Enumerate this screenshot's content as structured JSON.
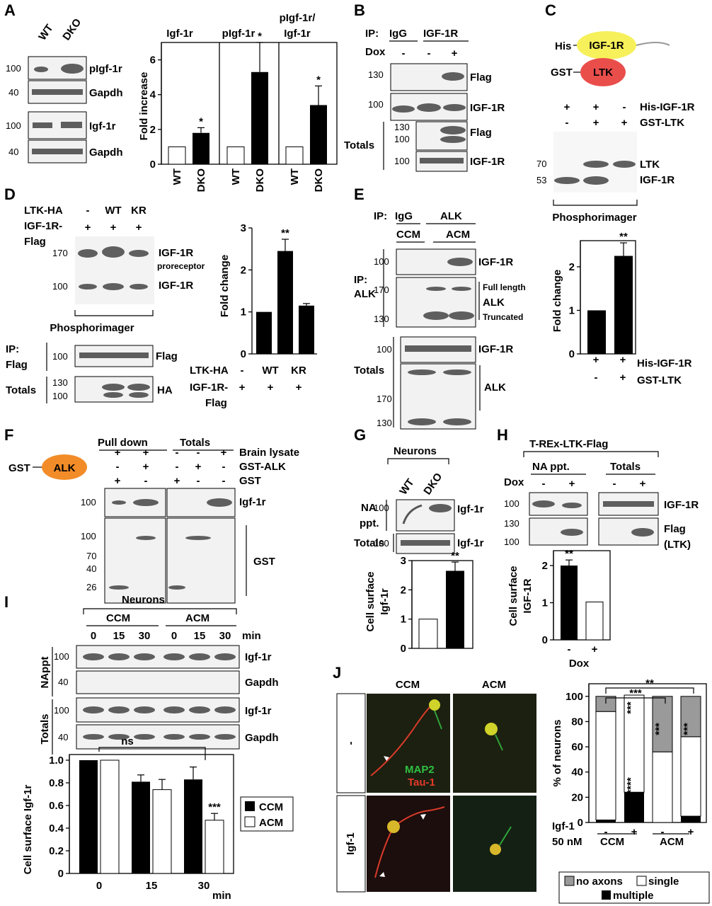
{
  "panels": {
    "A": {
      "letter": "A",
      "lanes": [
        "WT",
        "DKO"
      ],
      "blots": [
        {
          "mw": "100",
          "label": "pIgf-1r"
        },
        {
          "mw": "40",
          "label": "Gapdh"
        },
        {
          "mw": "100",
          "label": "Igf-1r"
        },
        {
          "mw": "40",
          "label": "Gapdh"
        }
      ],
      "chart_titles": [
        "Igf-1r",
        "pIgf-1r",
        "pIgf-1r/",
        "Igf-1r"
      ],
      "ylabel": "Fold increase",
      "yticks": [
        "0",
        "2",
        "4",
        "6"
      ],
      "xticks": [
        "WT",
        "DKO"
      ],
      "sig": "*"
    },
    "B": {
      "letter": "B",
      "ip_label": "IP:",
      "ip_groups": [
        "IgG",
        "IGF-1R"
      ],
      "dox_label": "Dox",
      "dox_signs": [
        "-",
        "-",
        "+"
      ],
      "blots": [
        {
          "mw": "130",
          "label": "Flag"
        },
        {
          "mw": "100",
          "label": "IGF-1R"
        },
        {
          "mw": "130",
          "mw2": "100",
          "label": "Flag"
        },
        {
          "mw": "100",
          "label": "IGF-1R"
        }
      ],
      "totals": "Totals"
    },
    "C": {
      "letter": "C",
      "his": "His",
      "igf": "IGF-1R",
      "gst": "GST",
      "ltk": "LTK",
      "rows": [
        {
          "signs": [
            "+",
            "+",
            "-"
          ],
          "label": "His-IGF-1R"
        },
        {
          "signs": [
            "-",
            "+",
            "+"
          ],
          "label": "GST-LTK"
        }
      ],
      "mw": [
        "70",
        "53"
      ],
      "band_labels": [
        "LTK",
        "IGF-1R"
      ],
      "phos": "Phosphorimager",
      "ylabel": "Fold change",
      "yticks": [
        "0",
        "1",
        "2"
      ],
      "sig": "**"
    },
    "D": {
      "letter": "D",
      "ltk": "LTK-HA",
      "lane_hdr": [
        "-",
        "WT",
        "KR"
      ],
      "igf": "IGF-1R-",
      "flag": "Flag",
      "signs": [
        "+",
        "+",
        "+"
      ],
      "mw": [
        "170",
        "100"
      ],
      "band_labels": [
        "IGF-1R",
        "proreceptor",
        "IGF-1R"
      ],
      "phos": "Phosphorimager",
      "ip": "IP:",
      "ip2": "Flag",
      "ip_mw": "100",
      "ip_label": "Flag",
      "totals": "Totals",
      "tot_mw": [
        "130",
        "100"
      ],
      "tot_label": "HA",
      "ylabel": "Fold change",
      "yticks": [
        "0",
        "1",
        "2",
        "3"
      ],
      "sig": "**"
    },
    "E": {
      "letter": "E",
      "ip": "IP:",
      "groups": [
        "IgG",
        "ALK",
        "CCM",
        "ACM"
      ],
      "ip_alk": [
        "IP:",
        "ALK"
      ],
      "mw": [
        "100",
        "170",
        "130",
        "100",
        "170",
        "130"
      ],
      "labels": [
        "IGF-1R",
        "Full length",
        "ALK",
        "Truncated",
        "IGF-1R",
        "ALK"
      ],
      "totals": "Totals"
    },
    "F": {
      "letter": "F",
      "gst": "GST",
      "alk": "ALK",
      "headers": [
        "Pull down",
        "Totals"
      ],
      "rows": [
        {
          "signs": [
            "+",
            "+",
            "-",
            "-",
            "+"
          ],
          "label": "Brain lysate"
        },
        {
          "signs": [
            "-",
            "+",
            "-",
            "+",
            "-"
          ],
          "label": "GST-ALK"
        },
        {
          "signs": [
            "+",
            "-",
            "+",
            "-",
            "-"
          ],
          "label": "GST"
        }
      ],
      "mw": [
        "100",
        "100",
        "70",
        "40",
        "26"
      ],
      "labels": [
        "Igf-1r",
        "GST"
      ]
    },
    "G": {
      "letter": "G",
      "header": "Neurons",
      "lanes": [
        "WT",
        "DKO"
      ],
      "na": [
        "NA",
        "ppt."
      ],
      "totals": "Totals",
      "mw": [
        "100",
        "100"
      ],
      "labels": [
        "Igf-1r",
        "Igf-1r"
      ],
      "ylabel": [
        "Cell surface",
        "Igf-1r"
      ],
      "yticks": [
        "0",
        "1",
        "2",
        "3"
      ],
      "sig": "**"
    },
    "H": {
      "letter": "H",
      "header": "T-REx-LTK-Flag",
      "groups": [
        "NA ppt.",
        "Totals"
      ],
      "dox": "Dox",
      "signs": [
        "-",
        "+",
        "-",
        "+"
      ],
      "mw": [
        "100",
        "130",
        "100"
      ],
      "labels": [
        "IGF-1R",
        "Flag",
        "(LTK)"
      ],
      "ylabel": [
        "Cell surface",
        "IGF-1R"
      ],
      "yticks": [
        "0",
        "1",
        "2"
      ],
      "xsigns": [
        "-",
        "+"
      ],
      "xlabel": "Dox",
      "sig": "**"
    },
    "I": {
      "letter": "I",
      "header": "Neurons",
      "groups": [
        "CCM",
        "ACM"
      ],
      "times": [
        "0",
        "15",
        "30",
        "0",
        "15",
        "30"
      ],
      "min": "min",
      "side": [
        "NAppt",
        "Totals"
      ],
      "mw": [
        "100",
        "40",
        "100",
        "40"
      ],
      "labels": [
        "Igf-1r",
        "Gapdh",
        "Igf-1r",
        "Gapdh"
      ],
      "ylabel": "Cell surface Igf-1r",
      "yticks": [
        "0",
        "0.2",
        "0.4",
        "0.6",
        "0.8",
        "1.0"
      ],
      "xticks": [
        "0",
        "15",
        "30"
      ],
      "xunit": "min",
      "ns": "ns",
      "sig": "***",
      "legend": [
        "CCM",
        "ACM"
      ]
    },
    "J": {
      "letter": "J",
      "cols": [
        "CCM",
        "ACM"
      ],
      "rows": [
        "-",
        "Igf-1"
      ],
      "stain1": "MAP2",
      "stain2": "Tau-1",
      "ylabel": "% of neurons",
      "yticks": [
        "0",
        "20",
        "40",
        "60",
        "80",
        "100"
      ],
      "igf": "Igf-1",
      "conc": "50 nM",
      "xsigns": [
        "-",
        "+",
        "-",
        "+"
      ],
      "xgroups": [
        "CCM",
        "ACM"
      ],
      "sig_top": [
        "***",
        "**"
      ],
      "sig_bars": [
        "***",
        "***",
        "****",
        "***"
      ],
      "legend": [
        "no axons",
        "single",
        "multiple"
      ]
    }
  },
  "chart_data": [
    {
      "type": "bar",
      "panel": "A",
      "categories": [
        "WT",
        "DKO"
      ],
      "series": [
        {
          "name": "Igf-1r",
          "values": [
            1.0,
            1.8
          ],
          "err": [
            0.0,
            0.3
          ]
        },
        {
          "name": "pIgf-1r",
          "values": [
            1.0,
            5.3
          ],
          "err": [
            0.0,
            1.7
          ]
        },
        {
          "name": "pIgf-1r/Igf-1r",
          "values": [
            1.0,
            3.4
          ],
          "err": [
            0.0,
            1.1
          ]
        }
      ],
      "ylabel": "Fold increase",
      "ylim": [
        0,
        7
      ]
    },
    {
      "type": "bar",
      "panel": "C",
      "categories": [
        "His-IGF-1R",
        "His-IGF-1R + GST-LTK"
      ],
      "values": [
        1.0,
        2.25
      ],
      "err": [
        0.0,
        0.3
      ],
      "ylabel": "Fold change",
      "ylim": [
        0,
        2.6
      ]
    },
    {
      "type": "bar",
      "panel": "D",
      "categories": [
        "-",
        "WT",
        "KR"
      ],
      "values": [
        1.0,
        2.45,
        1.15
      ],
      "err": [
        0.0,
        0.28,
        0.05
      ],
      "ylabel": "Fold change",
      "ylim": [
        0,
        3
      ]
    },
    {
      "type": "bar",
      "panel": "G",
      "categories": [
        "WT",
        "DKO"
      ],
      "values": [
        1.0,
        2.65
      ],
      "err": [
        0.0,
        0.3
      ],
      "ylim": [
        0,
        3
      ]
    },
    {
      "type": "bar",
      "panel": "H",
      "categories": [
        "-",
        "+"
      ],
      "values": [
        2.0,
        1.02
      ],
      "err": [
        0.15,
        0.0
      ],
      "ylim": [
        0,
        2.4
      ]
    },
    {
      "type": "bar",
      "panel": "I",
      "categories": [
        "0",
        "15",
        "30"
      ],
      "series": [
        {
          "name": "CCM",
          "values": [
            1.0,
            0.81,
            0.83
          ],
          "err": [
            0.0,
            0.06,
            0.11
          ]
        },
        {
          "name": "ACM",
          "values": [
            1.0,
            0.74,
            0.47
          ],
          "err": [
            0.0,
            0.09,
            0.06
          ]
        }
      ],
      "ylabel": "Cell surface Igf-1r",
      "ylim": [
        0,
        1.05
      ]
    },
    {
      "type": "bar",
      "panel": "J",
      "categories": [
        "CCM -",
        "CCM +",
        "ACM -",
        "ACM +"
      ],
      "series": [
        {
          "name": "multiple",
          "values": [
            2,
            24,
            0,
            5
          ]
        },
        {
          "name": "single",
          "values": [
            86,
            77,
            56,
            63
          ]
        },
        {
          "name": "no axons",
          "values": [
            12,
            0,
            44,
            32
          ]
        }
      ],
      "ylabel": "% of neurons",
      "ylim": [
        0,
        110
      ]
    }
  ]
}
